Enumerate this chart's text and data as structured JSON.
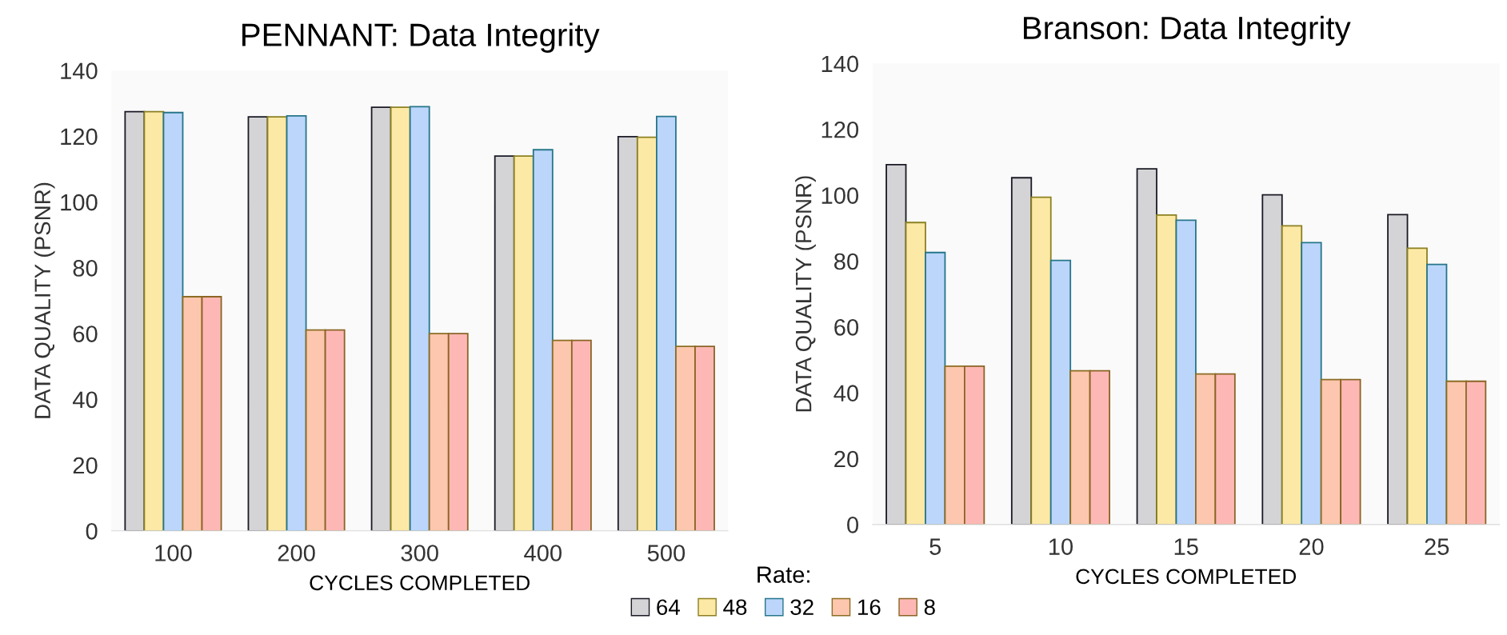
{
  "chart_data": [
    {
      "type": "bar",
      "title": "PENNANT: Data Integrity",
      "xlabel": "CYCLES COMPLETED",
      "ylabel": "DATA QUALITY (PSNR)",
      "categories": [
        "100",
        "200",
        "300",
        "400",
        "500"
      ],
      "ylim": [
        0,
        140
      ],
      "yticks": [
        0,
        20,
        40,
        60,
        80,
        100,
        120,
        140
      ],
      "grid": false,
      "legend": "bottom",
      "legend_title": "Rate:",
      "series": [
        {
          "name": "64",
          "color": "#d4d4d6",
          "values": [
            127.5,
            125.9,
            128.8,
            114,
            119.9
          ]
        },
        {
          "name": "48",
          "color": "#fde9a6",
          "values": [
            127.5,
            125.9,
            128.8,
            114,
            119.7
          ]
        },
        {
          "name": "32",
          "color": "#bcd6fb",
          "values": [
            127.2,
            126.2,
            129,
            115.9,
            126
          ]
        },
        {
          "name": "16",
          "color": "#fdc6ae",
          "values": [
            71.2,
            61.1,
            60,
            57.9,
            56.1
          ]
        },
        {
          "name": "8",
          "color": "#fdb8b6",
          "values": [
            71.2,
            61.1,
            60,
            57.9,
            56.1
          ]
        }
      ]
    },
    {
      "type": "bar",
      "title": "Branson: Data Integrity",
      "xlabel": "CYCLES COMPLETED",
      "ylabel": "DATA QUALITY (PSNR)",
      "categories": [
        "5",
        "10",
        "15",
        "20",
        "25"
      ],
      "ylim": [
        0,
        140
      ],
      "yticks": [
        0,
        20,
        40,
        60,
        80,
        100,
        120,
        140
      ],
      "grid": false,
      "series": [
        {
          "name": "64",
          "color": "#d4d4d6",
          "values": [
            109.3,
            105.3,
            108,
            100.1,
            94.1
          ]
        },
        {
          "name": "48",
          "color": "#fde9a6",
          "values": [
            91.7,
            99.4,
            94,
            90.7,
            83.9
          ]
        },
        {
          "name": "32",
          "color": "#bcd6fb",
          "values": [
            82.6,
            80.2,
            92.4,
            85.6,
            79
          ]
        },
        {
          "name": "16",
          "color": "#fdc6ae",
          "values": [
            48.1,
            46.7,
            45.7,
            44,
            43.5
          ]
        },
        {
          "name": "8",
          "color": "#fdb8b6",
          "values": [
            48.1,
            46.7,
            45.7,
            44,
            43.5
          ]
        }
      ]
    }
  ]
}
